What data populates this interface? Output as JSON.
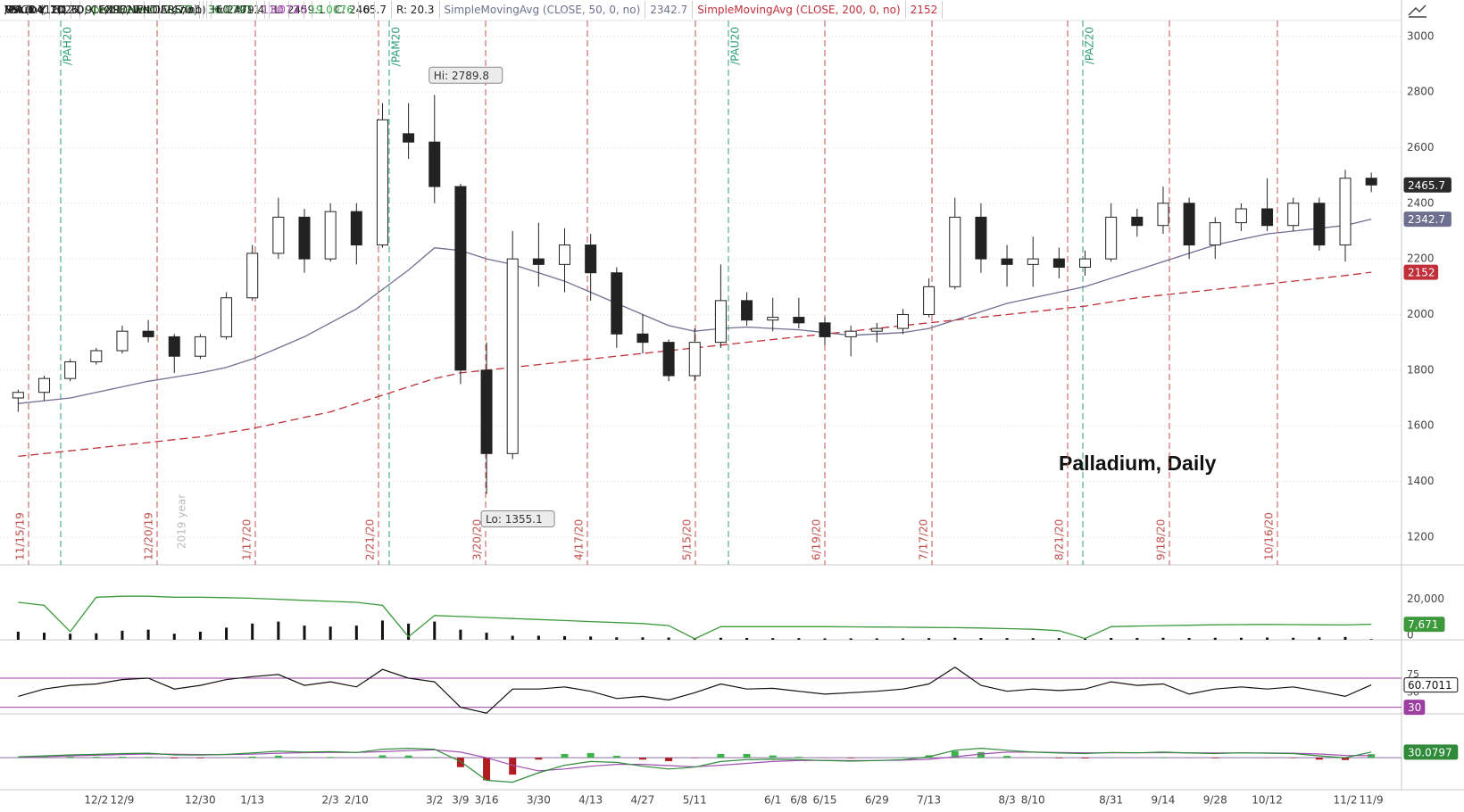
{
  "chart_data": {
    "type": "candlestick",
    "header": [
      "/PA 1 Y 1D",
      "D: 11/11/20",
      "O: 2470.1",
      "H: 2479.4",
      "L: 2459.1",
      "C: 2465.7",
      "R: 20.3"
    ],
    "categories": [
      null,
      null,
      null,
      "12/2",
      "12/9",
      null,
      null,
      "12/30",
      null,
      "1/13",
      null,
      null,
      "2/3",
      "2/10",
      null,
      null,
      "3/2",
      "3/9",
      "3/16",
      null,
      "3/30",
      null,
      "4/13",
      null,
      "4/27",
      null,
      "5/11",
      null,
      null,
      "6/1",
      "6/8",
      "6/15",
      null,
      "6/29",
      null,
      "7/13",
      null,
      null,
      "8/3",
      "8/10",
      null,
      null,
      "8/31",
      null,
      "9/14",
      null,
      "9/28",
      null,
      "10/12",
      null,
      null,
      "11/2",
      "11/9"
    ],
    "open": [
      1700,
      1720,
      1770,
      1830,
      1870,
      1940,
      1920,
      1850,
      1920,
      2060,
      2220,
      2350,
      2200,
      2370,
      2250,
      2650,
      2620,
      2460,
      1800,
      1500,
      2200,
      2180,
      2250,
      2150,
      1930,
      1900,
      1780,
      1900,
      2050,
      1980,
      1990,
      1970,
      1920,
      1940,
      1950,
      2000,
      2100,
      2350,
      2200,
      2180,
      2200,
      2170,
      2200,
      2350,
      2320,
      2400,
      2250,
      2330,
      2380,
      2320,
      2400,
      2250,
      2490
    ],
    "high": [
      1730,
      1780,
      1840,
      1880,
      1960,
      1980,
      1930,
      1930,
      2080,
      2250,
      2420,
      2380,
      2400,
      2400,
      2760,
      2760,
      2789.8,
      2470,
      1900,
      2300,
      2330,
      2310,
      2290,
      2170,
      2000,
      1910,
      1950,
      2180,
      2080,
      2060,
      2060,
      1990,
      1960,
      1970,
      2020,
      2130,
      2420,
      2400,
      2250,
      2280,
      2240,
      2230,
      2400,
      2380,
      2460,
      2420,
      2350,
      2400,
      2490,
      2420,
      2420,
      2520,
      2510
    ],
    "low": [
      1650,
      1690,
      1760,
      1820,
      1860,
      1900,
      1790,
      1840,
      1910,
      2050,
      2200,
      2150,
      2190,
      2180,
      2240,
      2560,
      2400,
      1750,
      1355.1,
      1480,
      2100,
      2080,
      2050,
      1880,
      1860,
      1760,
      1760,
      1880,
      1960,
      1940,
      1950,
      1890,
      1850,
      1900,
      1930,
      1990,
      2090,
      2150,
      2100,
      2100,
      2130,
      2140,
      2190,
      2280,
      2290,
      2200,
      2200,
      2300,
      2300,
      2300,
      2230,
      2190,
      2440
    ],
    "close": [
      1720,
      1770,
      1830,
      1870,
      1940,
      1920,
      1850,
      1920,
      2060,
      2220,
      2350,
      2200,
      2370,
      2250,
      2700,
      2620,
      2460,
      1800,
      1500,
      2200,
      2180,
      2250,
      2150,
      1930,
      1900,
      1780,
      1900,
      2050,
      1980,
      1990,
      1970,
      1920,
      1940,
      1950,
      2000,
      2100,
      2350,
      2200,
      2180,
      2200,
      2170,
      2200,
      2350,
      2320,
      2400,
      2250,
      2330,
      2380,
      2320,
      2400,
      2250,
      2490,
      2465.7
    ],
    "up_color": "#ffffff",
    "down_color": "#222222",
    "ylim": [
      1100,
      3057
    ],
    "yticks": [
      1200,
      1400,
      1600,
      1800,
      2000,
      2200,
      2400,
      2600,
      2800,
      3000
    ],
    "grid": true,
    "overlays": [
      {
        "name": "SimpleMovingAvg (CLOSE, 50, 0, no)",
        "color": "#6f7090",
        "dashed": false,
        "values": [
          1680,
          1690,
          1700,
          1720,
          1740,
          1760,
          1775,
          1790,
          1810,
          1840,
          1880,
          1920,
          1970,
          2020,
          2090,
          2160,
          2240,
          2230,
          2200,
          2180,
          2150,
          2120,
          2080,
          2040,
          2000,
          1960,
          1940,
          1950,
          1955,
          1950,
          1945,
          1935,
          1925,
          1930,
          1935,
          1950,
          1980,
          2010,
          2040,
          2060,
          2080,
          2100,
          2130,
          2160,
          2190,
          2220,
          2250,
          2270,
          2290,
          2300,
          2310,
          2320,
          2342.7
        ]
      },
      {
        "name": "SimpleMovingAvg (CLOSE, 200, 0, no)",
        "color": "#c0303a",
        "dashed": true,
        "values": [
          1490,
          1500,
          1510,
          1520,
          1530,
          1540,
          1550,
          1560,
          1575,
          1590,
          1610,
          1630,
          1650,
          1680,
          1710,
          1740,
          1770,
          1790,
          1800,
          1810,
          1820,
          1830,
          1840,
          1850,
          1860,
          1870,
          1880,
          1890,
          1900,
          1910,
          1920,
          1930,
          1940,
          1950,
          1960,
          1970,
          1980,
          1990,
          2000,
          2010,
          2020,
          2030,
          2045,
          2060,
          2070,
          2080,
          2090,
          2100,
          2110,
          2120,
          2130,
          2140,
          2152
        ]
      }
    ],
    "annotations": {
      "title": "Palladium, Daily",
      "high": "Hi: 2789.8",
      "low": "Lo: 1355.1"
    },
    "events": [
      {
        "label": "11/15/19",
        "kind": "expiry"
      },
      {
        "label": "/PAH20",
        "kind": "roll"
      },
      {
        "label": "12/20/19",
        "kind": "expiry"
      },
      {
        "label": "2019 year",
        "kind": "year"
      },
      {
        "label": "1/17/20",
        "kind": "expiry"
      },
      {
        "label": "2/21/20",
        "kind": "expiry"
      },
      {
        "label": "/PAM20",
        "kind": "roll"
      },
      {
        "label": "3/20/20",
        "kind": "expiry"
      },
      {
        "label": "4/17/20",
        "kind": "expiry"
      },
      {
        "label": "5/15/20",
        "kind": "expiry"
      },
      {
        "label": "/PAU20",
        "kind": "roll"
      },
      {
        "label": "6/19/20",
        "kind": "expiry"
      },
      {
        "label": "7/17/20",
        "kind": "expiry"
      },
      {
        "label": "8/21/20",
        "kind": "expiry"
      },
      {
        "label": "/PAZ20",
        "kind": "roll"
      },
      {
        "label": "9/18/20",
        "kind": "expiry"
      },
      {
        "label": "10/16/20",
        "kind": "expiry"
      }
    ],
    "volume": {
      "name": "Volume",
      "color": "#111111",
      "values": [
        4000,
        3500,
        3000,
        3200,
        4500,
        5000,
        3000,
        4000,
        6000,
        8000,
        9000,
        7000,
        6500,
        7000,
        9500,
        8000,
        9000,
        5000,
        3500,
        2000,
        2000,
        1800,
        1600,
        1200,
        1200,
        1100,
        900,
        1000,
        900,
        800,
        800,
        700,
        700,
        700,
        700,
        800,
        1000,
        900,
        800,
        800,
        800,
        700,
        900,
        900,
        1000,
        900,
        1000,
        1000,
        1100,
        1000,
        1200,
        1400,
        312
      ],
      "ylim": [
        0,
        26000
      ],
      "yticks": [
        0,
        {
          "value": 20000,
          "label": "20,000"
        }
      ],
      "open_interest": {
        "name": "OpenInterest",
        "color": "#3c9a3c",
        "last_label": "7,671",
        "values": [
          18500,
          17000,
          4000,
          21000,
          21500,
          21500,
          21000,
          21000,
          20800,
          20500,
          20000,
          19500,
          19000,
          18500,
          17000,
          1500,
          12000,
          11500,
          11000,
          10500,
          10000,
          9500,
          9000,
          8500,
          8000,
          7000,
          500,
          6500,
          6500,
          6500,
          6500,
          6500,
          6400,
          6300,
          6200,
          6100,
          6000,
          5800,
          5500,
          5200,
          4500,
          600,
          6500,
          6800,
          7000,
          7200,
          7400,
          7500,
          7600,
          7500,
          7400,
          7300,
          7671
        ]
      }
    },
    "rsi": {
      "name": "RSI (14, 70, 30, CLOSE, WILDERS, no)",
      "color": "#111111",
      "values": [
        45,
        55,
        60,
        62,
        68,
        70,
        55,
        60,
        68,
        72,
        75,
        60,
        65,
        58,
        82,
        70,
        65,
        30,
        22,
        55,
        55,
        58,
        52,
        42,
        45,
        40,
        50,
        62,
        55,
        56,
        52,
        48,
        50,
        52,
        55,
        62,
        85,
        60,
        52,
        55,
        53,
        55,
        65,
        60,
        62,
        48,
        55,
        58,
        55,
        58,
        52,
        45,
        60.7011
      ],
      "levels": [
        30,
        70
      ],
      "level_color": "#9c3fa0",
      "ylim": [
        21,
        92
      ],
      "yticks": [
        50,
        75
      ]
    },
    "macd": {
      "name": "MACD (12, 26, 9, EXPONENTIAL, no)",
      "ylim": [
        -170,
        110
      ],
      "zero": 0,
      "value": {
        "color": "#2f8a3a",
        "values": [
          5,
          10,
          15,
          18,
          22,
          24,
          15,
          14,
          18,
          25,
          35,
          30,
          32,
          28,
          45,
          50,
          45,
          -20,
          -120,
          -130,
          -80,
          -40,
          -20,
          -25,
          -45,
          -60,
          -50,
          -20,
          -10,
          -8,
          -10,
          -15,
          -18,
          -15,
          -10,
          5,
          40,
          50,
          40,
          30,
          25,
          22,
          28,
          26,
          30,
          25,
          22,
          26,
          24,
          22,
          10,
          0,
          30.0797
        ]
      },
      "avg": {
        "color": "#a050b0",
        "values": [
          3,
          6,
          10,
          13,
          17,
          20,
          19,
          17,
          17,
          19,
          24,
          27,
          28,
          28,
          32,
          38,
          42,
          30,
          0,
          -40,
          -70,
          -60,
          -45,
          -35,
          -35,
          -42,
          -48,
          -40,
          -30,
          -20,
          -15,
          -14,
          -15,
          -15,
          -13,
          -8,
          5,
          20,
          30,
          30,
          28,
          26,
          26,
          26,
          27,
          26,
          25,
          25,
          25,
          24,
          20,
          12,
          11.072
        ]
      },
      "diff": {
        "up_color": "#3cb34a",
        "down_color": "#b01c22",
        "values": [
          2,
          4,
          5,
          5,
          5,
          4,
          -4,
          -3,
          1,
          6,
          11,
          3,
          4,
          0,
          13,
          12,
          3,
          -50,
          -120,
          -90,
          -10,
          20,
          25,
          10,
          -10,
          -18,
          -2,
          20,
          20,
          12,
          5,
          -1,
          -3,
          0,
          3,
          13,
          35,
          30,
          10,
          0,
          -3,
          -4,
          2,
          0,
          3,
          -1,
          -3,
          1,
          -1,
          -2,
          -10,
          -12,
          19.0076
        ]
      }
    }
  }
}
